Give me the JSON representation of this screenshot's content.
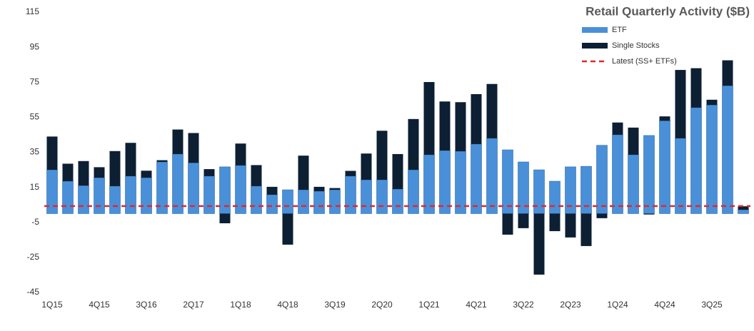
{
  "chart_data": {
    "type": "stacked_bar",
    "title": "Retail Quarterly Activity ($B)",
    "categories": [
      "1Q15",
      null,
      null,
      "4Q15",
      null,
      null,
      "3Q16",
      null,
      null,
      "2Q17",
      null,
      null,
      "1Q18",
      null,
      null,
      "4Q18",
      null,
      null,
      "3Q19",
      null,
      null,
      "2Q20",
      null,
      null,
      "1Q21",
      null,
      null,
      "4Q21",
      null,
      null,
      "3Q22",
      null,
      null,
      "2Q23",
      null,
      null,
      "1Q24",
      null,
      null,
      "4Q24",
      null,
      null,
      "3Q25",
      null,
      null
    ],
    "series": [
      {
        "name": "ETF",
        "color": "#4a90d9",
        "values": [
          25,
          18.5,
          16,
          20.5,
          15.7,
          21.4,
          20.5,
          29.5,
          34,
          29,
          21.4,
          26.7,
          27.5,
          15.7,
          10.8,
          13.6,
          13.6,
          12.8,
          13.6,
          21.4,
          19.3,
          19.3,
          14,
          25,
          33.6,
          36,
          35.6,
          39.7,
          43,
          36.4,
          29.5,
          25,
          18.5,
          26.7,
          27,
          39,
          45,
          33.6,
          44.6,
          53,
          43,
          60.5,
          62,
          73,
          2.2
        ]
      },
      {
        "name": "Single Stocks",
        "color": "#0c1f33",
        "values": [
          19,
          10,
          14,
          6,
          20,
          19,
          4,
          1,
          14,
          17,
          4,
          -5.5,
          12.5,
          12,
          4.5,
          -17.7,
          19.5,
          2.5,
          1,
          3,
          15,
          28,
          20,
          29,
          41.5,
          28,
          28,
          28.5,
          31,
          -12,
          -8.3,
          -34.8,
          -10,
          -13.6,
          -18.5,
          -2.6,
          7,
          15.5,
          -0.5,
          2.5,
          39,
          22.5,
          3,
          14.5,
          2
        ]
      }
    ],
    "reference_line": {
      "name": "Latest (SS+ ETFs)",
      "value": 4.3,
      "color": "#e0282e"
    },
    "ylim": [
      -45,
      115
    ],
    "yticks": [
      -45,
      -25,
      -5,
      15,
      35,
      55,
      75,
      95,
      115
    ],
    "grid": false
  }
}
